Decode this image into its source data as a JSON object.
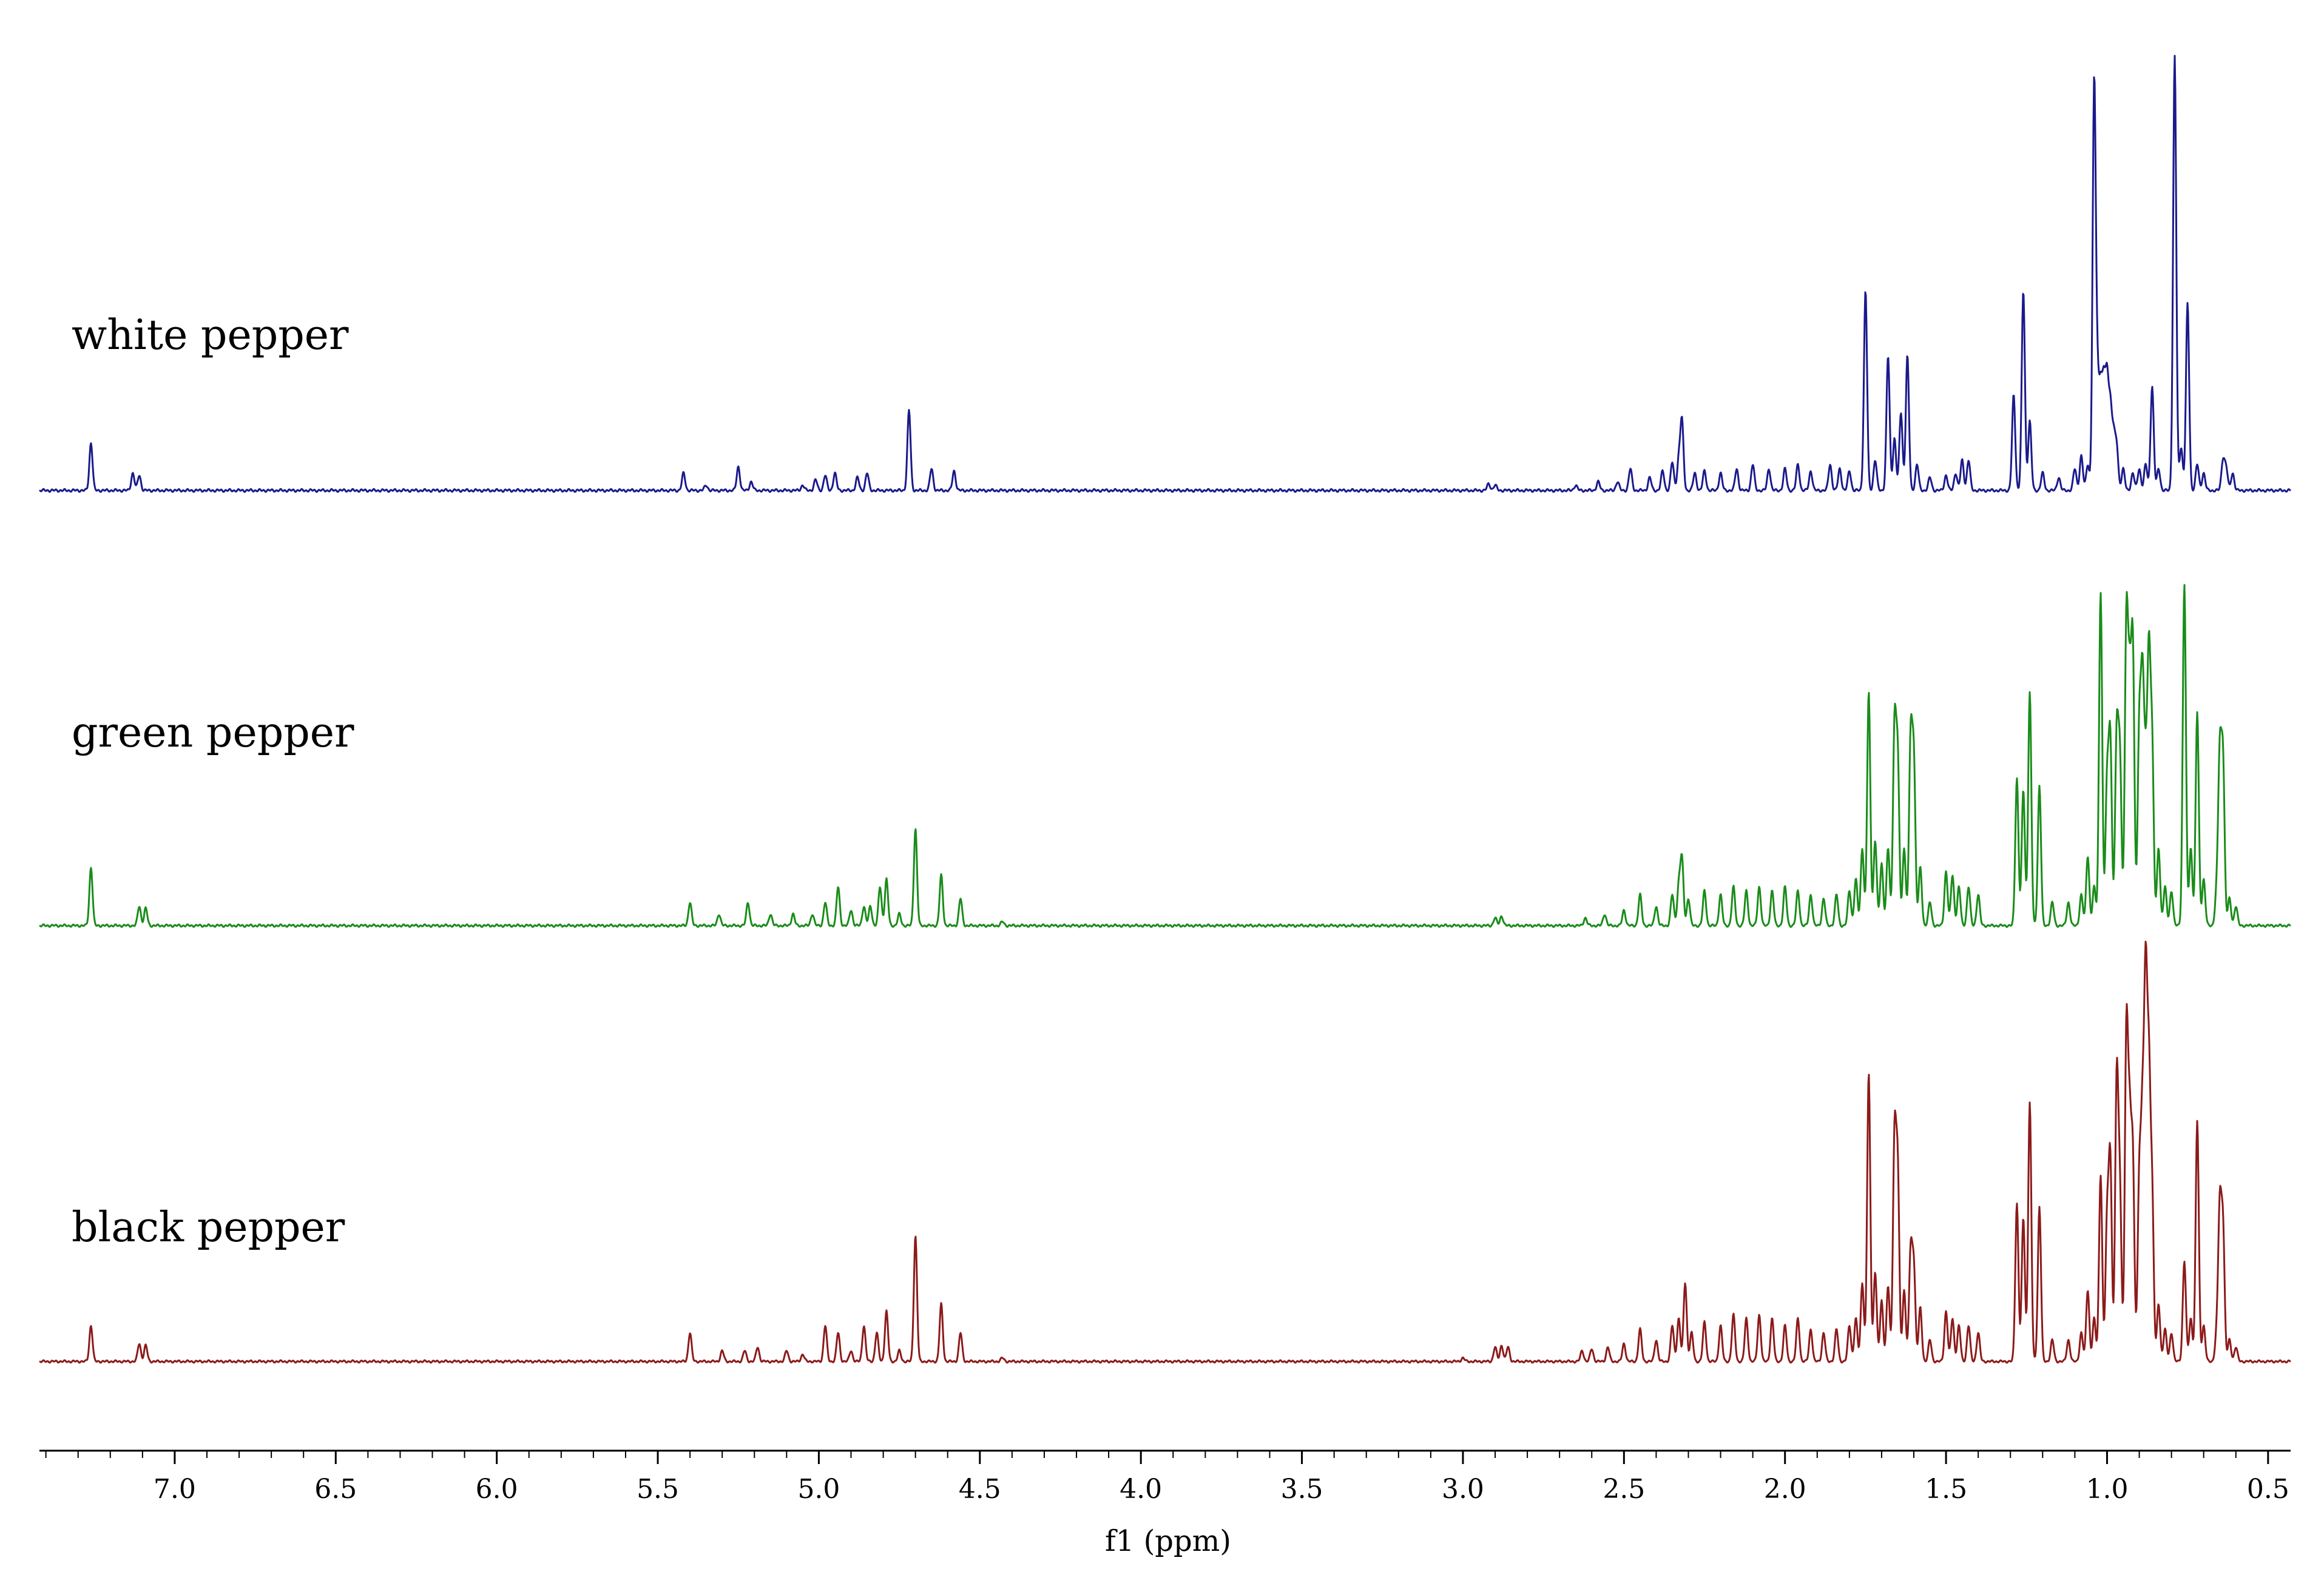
{
  "chart_data": {
    "type": "line",
    "title": "",
    "xlabel": "f1 (ppm)",
    "ylabel": "",
    "x_reversed": true,
    "xlim": [
      7.42,
      0.43
    ],
    "x_ticks": [
      "7.0",
      "6.5",
      "6.0",
      "5.5",
      "5.0",
      "4.5",
      "4.0",
      "3.5",
      "3.0",
      "2.5",
      "2.0",
      "1.5",
      "1.0",
      "0.5"
    ],
    "x_tick_values": [
      7.0,
      6.5,
      6.0,
      5.5,
      5.0,
      4.5,
      4.0,
      3.5,
      3.0,
      2.5,
      2.0,
      1.5,
      1.0,
      0.5
    ],
    "grid": false,
    "legend": "none",
    "series": [
      {
        "name": "white pepper",
        "color": "#1a1a8c",
        "peaks": [
          [
            7.26,
            0.11
          ],
          [
            7.13,
            0.04
          ],
          [
            7.11,
            0.035
          ],
          [
            5.42,
            0.04
          ],
          [
            5.35,
            0.012
          ],
          [
            5.25,
            0.055
          ],
          [
            5.21,
            0.02
          ],
          [
            5.05,
            0.012
          ],
          [
            5.01,
            0.025
          ],
          [
            4.98,
            0.035
          ],
          [
            4.95,
            0.04
          ],
          [
            4.88,
            0.03
          ],
          [
            4.85,
            0.04
          ],
          [
            4.72,
            0.185
          ],
          [
            4.65,
            0.05
          ],
          [
            4.58,
            0.045
          ],
          [
            2.92,
            0.015
          ],
          [
            2.9,
            0.012
          ],
          [
            2.65,
            0.012
          ],
          [
            2.58,
            0.02
          ],
          [
            2.52,
            0.02
          ],
          [
            2.48,
            0.05
          ],
          [
            2.42,
            0.03
          ],
          [
            2.38,
            0.045
          ],
          [
            2.35,
            0.065
          ],
          [
            2.33,
            0.07
          ],
          [
            2.32,
            0.16
          ],
          [
            2.28,
            0.04
          ],
          [
            2.25,
            0.045
          ],
          [
            2.2,
            0.04
          ],
          [
            2.15,
            0.05
          ],
          [
            2.1,
            0.06
          ],
          [
            2.05,
            0.05
          ],
          [
            2.0,
            0.05
          ],
          [
            1.96,
            0.06
          ],
          [
            1.92,
            0.045
          ],
          [
            1.86,
            0.06
          ],
          [
            1.83,
            0.05
          ],
          [
            1.8,
            0.045
          ],
          [
            1.75,
            0.46
          ],
          [
            1.72,
            0.07
          ],
          [
            1.68,
            0.31
          ],
          [
            1.66,
            0.12
          ],
          [
            1.64,
            0.18
          ],
          [
            1.62,
            0.31
          ],
          [
            1.59,
            0.06
          ],
          [
            1.55,
            0.03
          ],
          [
            1.5,
            0.035
          ],
          [
            1.47,
            0.04
          ],
          [
            1.45,
            0.07
          ],
          [
            1.43,
            0.07
          ],
          [
            1.29,
            0.22
          ],
          [
            1.26,
            0.46
          ],
          [
            1.24,
            0.16
          ],
          [
            1.2,
            0.04
          ],
          [
            1.15,
            0.03
          ],
          [
            1.1,
            0.05
          ],
          [
            1.08,
            0.08
          ],
          [
            1.06,
            0.06
          ],
          [
            1.04,
            0.93
          ],
          [
            1.03,
            0.22
          ],
          [
            1.02,
            0.22
          ],
          [
            1.01,
            0.23
          ],
          [
            1.0,
            0.24
          ],
          [
            0.99,
            0.18
          ],
          [
            0.98,
            0.12
          ],
          [
            0.97,
            0.1
          ],
          [
            0.95,
            0.05
          ],
          [
            0.92,
            0.04
          ],
          [
            0.9,
            0.05
          ],
          [
            0.88,
            0.06
          ],
          [
            0.86,
            0.24
          ],
          [
            0.84,
            0.05
          ],
          [
            0.79,
            1.0
          ],
          [
            0.77,
            0.1
          ],
          [
            0.75,
            0.43
          ],
          [
            0.72,
            0.06
          ],
          [
            0.7,
            0.04
          ],
          [
            0.64,
            0.07
          ],
          [
            0.63,
            0.05
          ],
          [
            0.61,
            0.04
          ]
        ]
      },
      {
        "name": "green pepper",
        "color": "#1a8c1a",
        "peaks": [
          [
            7.26,
            0.15
          ],
          [
            7.11,
            0.05
          ],
          [
            7.09,
            0.045
          ],
          [
            5.4,
            0.06
          ],
          [
            5.31,
            0.03
          ],
          [
            5.22,
            0.06
          ],
          [
            5.15,
            0.03
          ],
          [
            5.08,
            0.03
          ],
          [
            5.02,
            0.03
          ],
          [
            4.98,
            0.06
          ],
          [
            4.94,
            0.1
          ],
          [
            4.9,
            0.04
          ],
          [
            4.86,
            0.05
          ],
          [
            4.84,
            0.05
          ],
          [
            4.81,
            0.1
          ],
          [
            4.79,
            0.12
          ],
          [
            4.75,
            0.03
          ],
          [
            4.7,
            0.25
          ],
          [
            4.62,
            0.13
          ],
          [
            4.56,
            0.07
          ],
          [
            4.43,
            0.01
          ],
          [
            2.9,
            0.02
          ],
          [
            2.88,
            0.025
          ],
          [
            2.62,
            0.02
          ],
          [
            2.56,
            0.03
          ],
          [
            2.5,
            0.04
          ],
          [
            2.45,
            0.08
          ],
          [
            2.4,
            0.05
          ],
          [
            2.35,
            0.08
          ],
          [
            2.33,
            0.1
          ],
          [
            2.32,
            0.17
          ],
          [
            2.3,
            0.07
          ],
          [
            2.25,
            0.09
          ],
          [
            2.2,
            0.08
          ],
          [
            2.16,
            0.1
          ],
          [
            2.12,
            0.09
          ],
          [
            2.08,
            0.1
          ],
          [
            2.04,
            0.09
          ],
          [
            2.0,
            0.1
          ],
          [
            1.96,
            0.09
          ],
          [
            1.92,
            0.08
          ],
          [
            1.88,
            0.07
          ],
          [
            1.84,
            0.08
          ],
          [
            1.8,
            0.09
          ],
          [
            1.78,
            0.12
          ],
          [
            1.76,
            0.2
          ],
          [
            1.74,
            0.6
          ],
          [
            1.72,
            0.22
          ],
          [
            1.7,
            0.16
          ],
          [
            1.68,
            0.2
          ],
          [
            1.66,
            0.5
          ],
          [
            1.65,
            0.42
          ],
          [
            1.63,
            0.2
          ],
          [
            1.61,
            0.47
          ],
          [
            1.6,
            0.42
          ],
          [
            1.58,
            0.15
          ],
          [
            1.55,
            0.06
          ],
          [
            1.5,
            0.14
          ],
          [
            1.48,
            0.13
          ],
          [
            1.46,
            0.1
          ],
          [
            1.43,
            0.1
          ],
          [
            1.4,
            0.08
          ],
          [
            1.28,
            0.38
          ],
          [
            1.26,
            0.35
          ],
          [
            1.24,
            0.6
          ],
          [
            1.21,
            0.36
          ],
          [
            1.17,
            0.06
          ],
          [
            1.12,
            0.06
          ],
          [
            1.08,
            0.08
          ],
          [
            1.06,
            0.18
          ],
          [
            1.04,
            0.1
          ],
          [
            1.02,
            0.86
          ],
          [
            1.0,
            0.36
          ],
          [
            0.99,
            0.47
          ],
          [
            0.97,
            0.49
          ],
          [
            0.96,
            0.42
          ],
          [
            0.94,
            0.77
          ],
          [
            0.93,
            0.55
          ],
          [
            0.92,
            0.7
          ],
          [
            0.9,
            0.5
          ],
          [
            0.89,
            0.6
          ],
          [
            0.88,
            0.35
          ],
          [
            0.87,
            0.66
          ],
          [
            0.86,
            0.45
          ],
          [
            0.84,
            0.2
          ],
          [
            0.82,
            0.1
          ],
          [
            0.8,
            0.09
          ],
          [
            0.76,
            0.88
          ],
          [
            0.74,
            0.2
          ],
          [
            0.72,
            0.55
          ],
          [
            0.7,
            0.12
          ],
          [
            0.66,
            0.08
          ],
          [
            0.65,
            0.43
          ],
          [
            0.64,
            0.42
          ],
          [
            0.62,
            0.07
          ],
          [
            0.6,
            0.05
          ]
        ]
      },
      {
        "name": "black pepper",
        "color": "#8c1a1a",
        "peaks": [
          [
            7.26,
            0.1
          ],
          [
            7.11,
            0.05
          ],
          [
            7.09,
            0.045
          ],
          [
            5.4,
            0.08
          ],
          [
            5.3,
            0.03
          ],
          [
            5.23,
            0.03
          ],
          [
            5.19,
            0.04
          ],
          [
            5.1,
            0.03
          ],
          [
            5.05,
            0.02
          ],
          [
            4.98,
            0.1
          ],
          [
            4.94,
            0.08
          ],
          [
            4.9,
            0.03
          ],
          [
            4.86,
            0.1
          ],
          [
            4.82,
            0.08
          ],
          [
            4.79,
            0.14
          ],
          [
            4.75,
            0.03
          ],
          [
            4.7,
            0.35
          ],
          [
            4.62,
            0.16
          ],
          [
            4.56,
            0.08
          ],
          [
            4.43,
            0.01
          ],
          [
            3.0,
            0.01
          ],
          [
            2.9,
            0.04
          ],
          [
            2.88,
            0.045
          ],
          [
            2.86,
            0.04
          ],
          [
            2.63,
            0.03
          ],
          [
            2.6,
            0.035
          ],
          [
            2.55,
            0.04
          ],
          [
            2.5,
            0.05
          ],
          [
            2.45,
            0.09
          ],
          [
            2.4,
            0.06
          ],
          [
            2.35,
            0.1
          ],
          [
            2.33,
            0.12
          ],
          [
            2.31,
            0.22
          ],
          [
            2.29,
            0.08
          ],
          [
            2.25,
            0.11
          ],
          [
            2.2,
            0.1
          ],
          [
            2.16,
            0.13
          ],
          [
            2.12,
            0.12
          ],
          [
            2.08,
            0.13
          ],
          [
            2.04,
            0.12
          ],
          [
            2.0,
            0.1
          ],
          [
            1.96,
            0.12
          ],
          [
            1.92,
            0.09
          ],
          [
            1.88,
            0.08
          ],
          [
            1.84,
            0.09
          ],
          [
            1.8,
            0.1
          ],
          [
            1.78,
            0.12
          ],
          [
            1.76,
            0.22
          ],
          [
            1.74,
            0.8
          ],
          [
            1.72,
            0.25
          ],
          [
            1.7,
            0.17
          ],
          [
            1.68,
            0.21
          ],
          [
            1.66,
            0.61
          ],
          [
            1.65,
            0.52
          ],
          [
            1.63,
            0.2
          ],
          [
            1.61,
            0.3
          ],
          [
            1.6,
            0.26
          ],
          [
            1.58,
            0.15
          ],
          [
            1.55,
            0.06
          ],
          [
            1.5,
            0.14
          ],
          [
            1.48,
            0.12
          ],
          [
            1.46,
            0.1
          ],
          [
            1.43,
            0.1
          ],
          [
            1.4,
            0.08
          ],
          [
            1.28,
            0.44
          ],
          [
            1.26,
            0.4
          ],
          [
            1.24,
            0.72
          ],
          [
            1.21,
            0.43
          ],
          [
            1.17,
            0.06
          ],
          [
            1.12,
            0.06
          ],
          [
            1.08,
            0.08
          ],
          [
            1.06,
            0.2
          ],
          [
            1.04,
            0.12
          ],
          [
            1.02,
            0.52
          ],
          [
            1.0,
            0.38
          ],
          [
            0.99,
            0.55
          ],
          [
            0.97,
            0.78
          ],
          [
            0.96,
            0.45
          ],
          [
            0.94,
            0.9
          ],
          [
            0.93,
            0.6
          ],
          [
            0.92,
            0.55
          ],
          [
            0.9,
            0.5
          ],
          [
            0.89,
            0.62
          ],
          [
            0.88,
            1.0
          ],
          [
            0.87,
            0.74
          ],
          [
            0.86,
            0.45
          ],
          [
            0.84,
            0.16
          ],
          [
            0.82,
            0.09
          ],
          [
            0.8,
            0.08
          ],
          [
            0.76,
            0.28
          ],
          [
            0.74,
            0.12
          ],
          [
            0.72,
            0.67
          ],
          [
            0.7,
            0.1
          ],
          [
            0.66,
            0.07
          ],
          [
            0.65,
            0.42
          ],
          [
            0.64,
            0.37
          ],
          [
            0.62,
            0.06
          ],
          [
            0.6,
            0.04
          ]
        ]
      }
    ]
  }
}
